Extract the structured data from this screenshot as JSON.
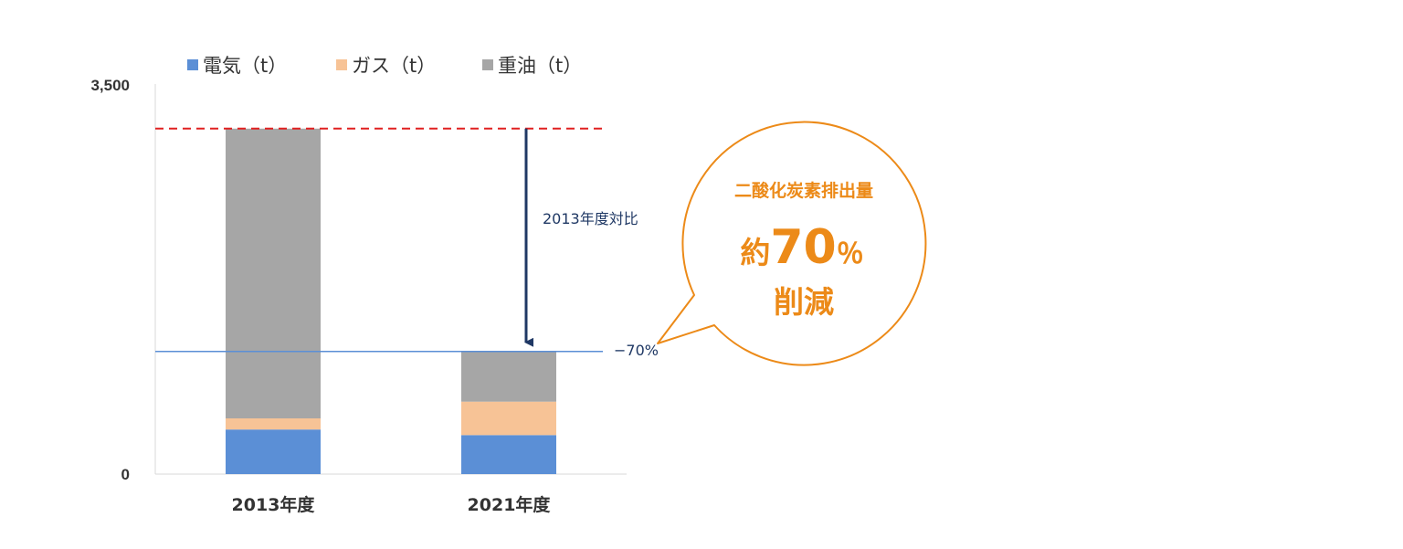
{
  "chart_data": {
    "type": "bar",
    "stacked": true,
    "categories": [
      "2013年度",
      "2021年度"
    ],
    "series": [
      {
        "name": "電気（t）",
        "color": "#5b8fd6",
        "values": [
          400,
          350
        ]
      },
      {
        "name": "ガス（t）",
        "color": "#f7c396",
        "values": [
          100,
          300
        ]
      },
      {
        "name": "重油（t）",
        "color": "#a6a6a6",
        "values": [
          2600,
          450
        ]
      }
    ],
    "ylim": [
      0,
      3500
    ],
    "yticks": [
      "0",
      "3,500"
    ],
    "legend_position": "top",
    "grid": false,
    "reference_lines": [
      {
        "label": "",
        "value": 3100,
        "color": "#e02020",
        "style": "dashed"
      },
      {
        "label": "−70%",
        "value": 1100,
        "color": "#5b8fd6",
        "style": "solid"
      }
    ],
    "annotation": {
      "arrow_label": "2013年度対比"
    },
    "callout": {
      "line1": "二酸化炭素排出量",
      "prefix": "約",
      "number": "70",
      "unit": "％",
      "line3": "削減",
      "color": "#ec8a18"
    }
  }
}
